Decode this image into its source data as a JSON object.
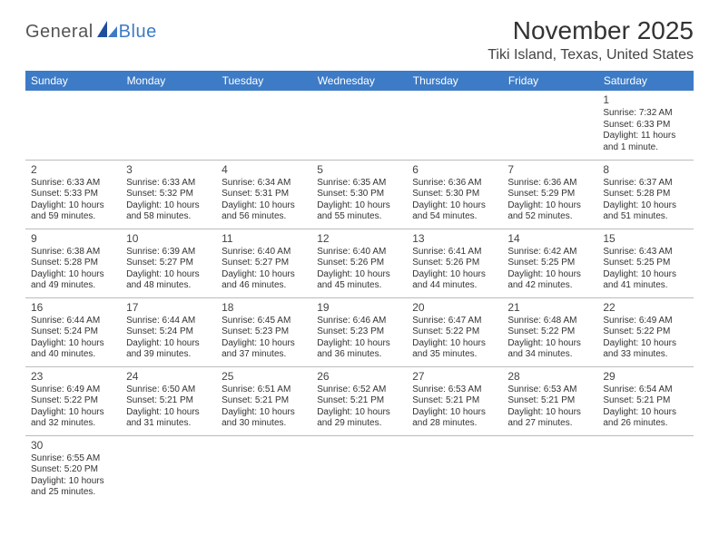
{
  "logo": {
    "part1": "General",
    "part2": "Blue"
  },
  "title": "November 2025",
  "location": "Tiki Island, Texas, United States",
  "colors": {
    "header_bg": "#3d7bc6",
    "header_text": "#ffffff",
    "cell_border": "#3d7bc6",
    "text": "#333333",
    "background": "#ffffff"
  },
  "dayHeaders": [
    "Sunday",
    "Monday",
    "Tuesday",
    "Wednesday",
    "Thursday",
    "Friday",
    "Saturday"
  ],
  "rows": [
    [
      null,
      null,
      null,
      null,
      null,
      null,
      {
        "n": "1",
        "sunrise": "7:32 AM",
        "sunset": "6:33 PM",
        "daylight": "11 hours and 1 minute."
      }
    ],
    [
      {
        "n": "2",
        "sunrise": "6:33 AM",
        "sunset": "5:33 PM",
        "daylight": "10 hours and 59 minutes."
      },
      {
        "n": "3",
        "sunrise": "6:33 AM",
        "sunset": "5:32 PM",
        "daylight": "10 hours and 58 minutes."
      },
      {
        "n": "4",
        "sunrise": "6:34 AM",
        "sunset": "5:31 PM",
        "daylight": "10 hours and 56 minutes."
      },
      {
        "n": "5",
        "sunrise": "6:35 AM",
        "sunset": "5:30 PM",
        "daylight": "10 hours and 55 minutes."
      },
      {
        "n": "6",
        "sunrise": "6:36 AM",
        "sunset": "5:30 PM",
        "daylight": "10 hours and 54 minutes."
      },
      {
        "n": "7",
        "sunrise": "6:36 AM",
        "sunset": "5:29 PM",
        "daylight": "10 hours and 52 minutes."
      },
      {
        "n": "8",
        "sunrise": "6:37 AM",
        "sunset": "5:28 PM",
        "daylight": "10 hours and 51 minutes."
      }
    ],
    [
      {
        "n": "9",
        "sunrise": "6:38 AM",
        "sunset": "5:28 PM",
        "daylight": "10 hours and 49 minutes."
      },
      {
        "n": "10",
        "sunrise": "6:39 AM",
        "sunset": "5:27 PM",
        "daylight": "10 hours and 48 minutes."
      },
      {
        "n": "11",
        "sunrise": "6:40 AM",
        "sunset": "5:27 PM",
        "daylight": "10 hours and 46 minutes."
      },
      {
        "n": "12",
        "sunrise": "6:40 AM",
        "sunset": "5:26 PM",
        "daylight": "10 hours and 45 minutes."
      },
      {
        "n": "13",
        "sunrise": "6:41 AM",
        "sunset": "5:26 PM",
        "daylight": "10 hours and 44 minutes."
      },
      {
        "n": "14",
        "sunrise": "6:42 AM",
        "sunset": "5:25 PM",
        "daylight": "10 hours and 42 minutes."
      },
      {
        "n": "15",
        "sunrise": "6:43 AM",
        "sunset": "5:25 PM",
        "daylight": "10 hours and 41 minutes."
      }
    ],
    [
      {
        "n": "16",
        "sunrise": "6:44 AM",
        "sunset": "5:24 PM",
        "daylight": "10 hours and 40 minutes."
      },
      {
        "n": "17",
        "sunrise": "6:44 AM",
        "sunset": "5:24 PM",
        "daylight": "10 hours and 39 minutes."
      },
      {
        "n": "18",
        "sunrise": "6:45 AM",
        "sunset": "5:23 PM",
        "daylight": "10 hours and 37 minutes."
      },
      {
        "n": "19",
        "sunrise": "6:46 AM",
        "sunset": "5:23 PM",
        "daylight": "10 hours and 36 minutes."
      },
      {
        "n": "20",
        "sunrise": "6:47 AM",
        "sunset": "5:22 PM",
        "daylight": "10 hours and 35 minutes."
      },
      {
        "n": "21",
        "sunrise": "6:48 AM",
        "sunset": "5:22 PM",
        "daylight": "10 hours and 34 minutes."
      },
      {
        "n": "22",
        "sunrise": "6:49 AM",
        "sunset": "5:22 PM",
        "daylight": "10 hours and 33 minutes."
      }
    ],
    [
      {
        "n": "23",
        "sunrise": "6:49 AM",
        "sunset": "5:22 PM",
        "daylight": "10 hours and 32 minutes."
      },
      {
        "n": "24",
        "sunrise": "6:50 AM",
        "sunset": "5:21 PM",
        "daylight": "10 hours and 31 minutes."
      },
      {
        "n": "25",
        "sunrise": "6:51 AM",
        "sunset": "5:21 PM",
        "daylight": "10 hours and 30 minutes."
      },
      {
        "n": "26",
        "sunrise": "6:52 AM",
        "sunset": "5:21 PM",
        "daylight": "10 hours and 29 minutes."
      },
      {
        "n": "27",
        "sunrise": "6:53 AM",
        "sunset": "5:21 PM",
        "daylight": "10 hours and 28 minutes."
      },
      {
        "n": "28",
        "sunrise": "6:53 AM",
        "sunset": "5:21 PM",
        "daylight": "10 hours and 27 minutes."
      },
      {
        "n": "29",
        "sunrise": "6:54 AM",
        "sunset": "5:21 PM",
        "daylight": "10 hours and 26 minutes."
      }
    ],
    [
      {
        "n": "30",
        "sunrise": "6:55 AM",
        "sunset": "5:20 PM",
        "daylight": "10 hours and 25 minutes."
      },
      null,
      null,
      null,
      null,
      null,
      null
    ]
  ],
  "labels": {
    "sunrise": "Sunrise:",
    "sunset": "Sunset:",
    "daylight": "Daylight:"
  }
}
